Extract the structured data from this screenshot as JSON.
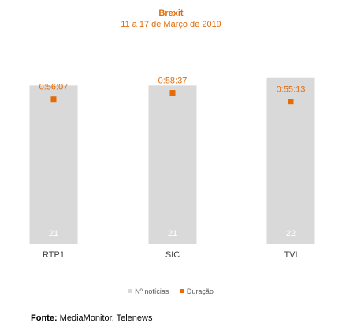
{
  "colors": {
    "accent": "#E36C09",
    "bar": "#D9D9D9",
    "bar_label": "#FFFFFF",
    "axis_text": "#404040"
  },
  "chart_data": {
    "type": "bar",
    "title": "Brexit",
    "subtitle": "11 a 17 de Março de 2019",
    "categories": [
      "RTP1",
      "SIC",
      "TVI"
    ],
    "series": [
      {
        "name": "Nº notícias",
        "kind": "bar",
        "values": [
          21,
          21,
          22
        ]
      },
      {
        "name": "Duração",
        "kind": "point",
        "values": [
          "0:56:07",
          "0:58:37",
          "0:55:13"
        ],
        "seconds": [
          3367,
          3517,
          3313
        ]
      }
    ],
    "bar_ylim": [
      0,
      22.5
    ],
    "point_ylim": [
      0,
      3950
    ],
    "grid": false,
    "legend_position": "bottom"
  },
  "source": {
    "label": "Fonte:",
    "text": "MediaMonitor, Telenews"
  }
}
